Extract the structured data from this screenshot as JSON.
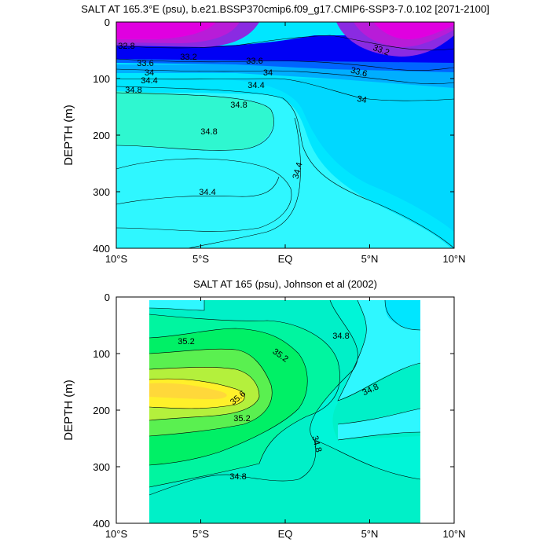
{
  "chart_data": [
    {
      "type": "contour",
      "title": "SALT AT 165.3°E (psu), b.e21.BSSP370cmip6.f09_g17.CMIP6-SSP3-7.0.102 [2071-2100]",
      "xlabel": "",
      "ylabel": "DEPTH (m)",
      "x_ticks": [
        "10°S",
        "5°S",
        "EQ",
        "5°N",
        "10°N"
      ],
      "x_tick_values": [
        -10,
        -5,
        0,
        5,
        10
      ],
      "y_ticks": [
        "0",
        "100",
        "200",
        "300",
        "400"
      ],
      "xlim": [
        -10,
        10
      ],
      "ylim": [
        0,
        400
      ],
      "y_inverted": true,
      "contour_labels": [
        {
          "text": "32.8",
          "x": -9.5,
          "y": 45
        },
        {
          "text": "33.2",
          "x": -5.2,
          "y": 60
        },
        {
          "text": "33.6",
          "x": -8.3,
          "y": 73
        },
        {
          "text": "33.6",
          "x": -1.8,
          "y": 70
        },
        {
          "text": "34",
          "x": -8.0,
          "y": 88
        },
        {
          "text": "34",
          "x": -1.0,
          "y": 90
        },
        {
          "text": "34.4",
          "x": -8.0,
          "y": 102
        },
        {
          "text": "34.4",
          "x": -1.3,
          "y": 112
        },
        {
          "text": "34.8",
          "x": -9.0,
          "y": 117
        },
        {
          "text": "34.8",
          "x": -3.0,
          "y": 145
        },
        {
          "text": "34.8",
          "x": -4.8,
          "y": 195
        },
        {
          "text": "34.4",
          "x": 0.8,
          "y": 255
        },
        {
          "text": "34.4",
          "x": -4.6,
          "y": 300
        },
        {
          "text": "33.2",
          "x": 5.7,
          "y": 50
        },
        {
          "text": "33.6",
          "x": 4.3,
          "y": 85
        },
        {
          "text": "34",
          "x": 4.3,
          "y": 140
        }
      ]
    },
    {
      "type": "contour",
      "title": "SALT AT 165 (psu), Johnson et al (2002)",
      "xlabel": "",
      "ylabel": "DEPTH (m)",
      "x_ticks": [
        "10°S",
        "5°S",
        "EQ",
        "5°N",
        "10°N"
      ],
      "x_tick_values": [
        -10,
        -5,
        0,
        5,
        10
      ],
      "y_ticks": [
        "0",
        "100",
        "200",
        "300",
        "400"
      ],
      "xlim": [
        -10,
        10
      ],
      "ylim": [
        0,
        400
      ],
      "y_inverted": true,
      "contour_labels": [
        {
          "text": "35.2",
          "x": -6.1,
          "y": 78
        },
        {
          "text": "35.2",
          "x": -0.3,
          "y": 100
        },
        {
          "text": "34.8",
          "x": 3.3,
          "y": 70
        },
        {
          "text": "35.6",
          "x": -2.8,
          "y": 188
        },
        {
          "text": "35.2",
          "x": -1.2,
          "y": 222
        },
        {
          "text": "34.8",
          "x": 5.3,
          "y": 168
        },
        {
          "text": "34.8",
          "x": 1.7,
          "y": 265
        },
        {
          "text": "34.8",
          "x": -2.5,
          "y": 320
        }
      ]
    }
  ]
}
